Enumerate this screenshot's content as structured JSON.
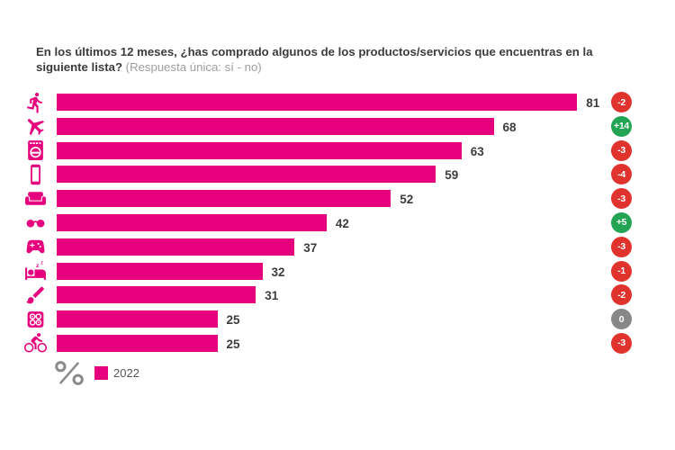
{
  "header": {
    "question": "En los últimos 12 meses, ¿has comprado algunos de los productos/servicios que encuentras en la siguiente lista?",
    "note": "(Respuesta única: sí - no)"
  },
  "chart_data": {
    "type": "bar",
    "orientation": "horizontal",
    "title": "En los últimos 12 meses, ¿has comprado algunos de los productos/servicios que encuentras en la siguiente lista? (Respuesta única: sí - no)",
    "unit": "%",
    "xlim": [
      0,
      100
    ],
    "grid": false,
    "legend_position": "bottom-left",
    "categories": [
      "running-person",
      "airplane",
      "washing-machine",
      "smartphone",
      "sofa",
      "glasses",
      "game-controller",
      "bed",
      "paintbrush",
      "cooktop",
      "bicycle"
    ],
    "series": [
      {
        "name": "2022",
        "values": [
          81,
          68,
          63,
          59,
          52,
          42,
          37,
          32,
          31,
          25,
          25
        ]
      }
    ],
    "deltas": [
      "-2",
      "+14",
      "-3",
      "-4",
      "-3",
      "+5",
      "-3",
      "-1",
      "-2",
      "0",
      "-3"
    ]
  },
  "legend": {
    "unit_symbol": "%",
    "year_label": "2022"
  },
  "colors": {
    "bar": "#E6007E",
    "delta_negative": "#E1332D",
    "delta_positive": "#23A455",
    "delta_zero": "#878787",
    "title_text": "#3C3C3B",
    "note_text": "#9D9D9C",
    "value_text": "#3C3C3B",
    "legend_text": "#575756",
    "percent_symbol": "#8A8A8A"
  }
}
